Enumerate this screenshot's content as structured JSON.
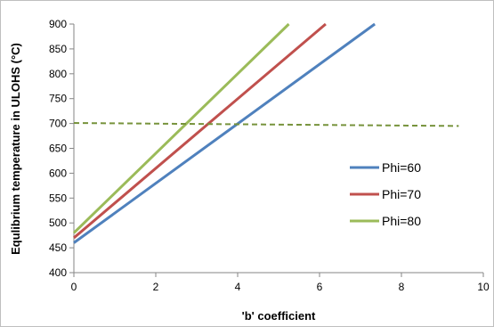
{
  "chart_data": {
    "type": "line",
    "title": "",
    "xlabel": "'b' coefficient",
    "ylabel": "Equlibrium temperature in ULOHS (°C)",
    "xlim": [
      0,
      10
    ],
    "ylim": [
      400,
      900
    ],
    "x_ticks": [
      "0",
      "2",
      "4",
      "6",
      "8",
      "10"
    ],
    "y_ticks": [
      "400",
      "450",
      "500",
      "550",
      "600",
      "650",
      "700",
      "750",
      "800",
      "850",
      "900"
    ],
    "grid": false,
    "legend_position": "right",
    "series": [
      {
        "name": "Phi=60",
        "color": "#4f81bd",
        "style": "solid",
        "x": [
          0,
          7.35
        ],
        "y": [
          460,
          900
        ]
      },
      {
        "name": "Phi=70",
        "color": "#c0504d",
        "style": "solid",
        "x": [
          0,
          6.15
        ],
        "y": [
          470,
          900
        ]
      },
      {
        "name": "Phi=80",
        "color": "#9bbb59",
        "style": "solid",
        "x": [
          0,
          5.25
        ],
        "y": [
          480,
          900
        ]
      },
      {
        "color": "#77933c",
        "style": "dashed",
        "x": [
          0,
          9.4
        ],
        "y": [
          701,
          695
        ]
      }
    ]
  }
}
